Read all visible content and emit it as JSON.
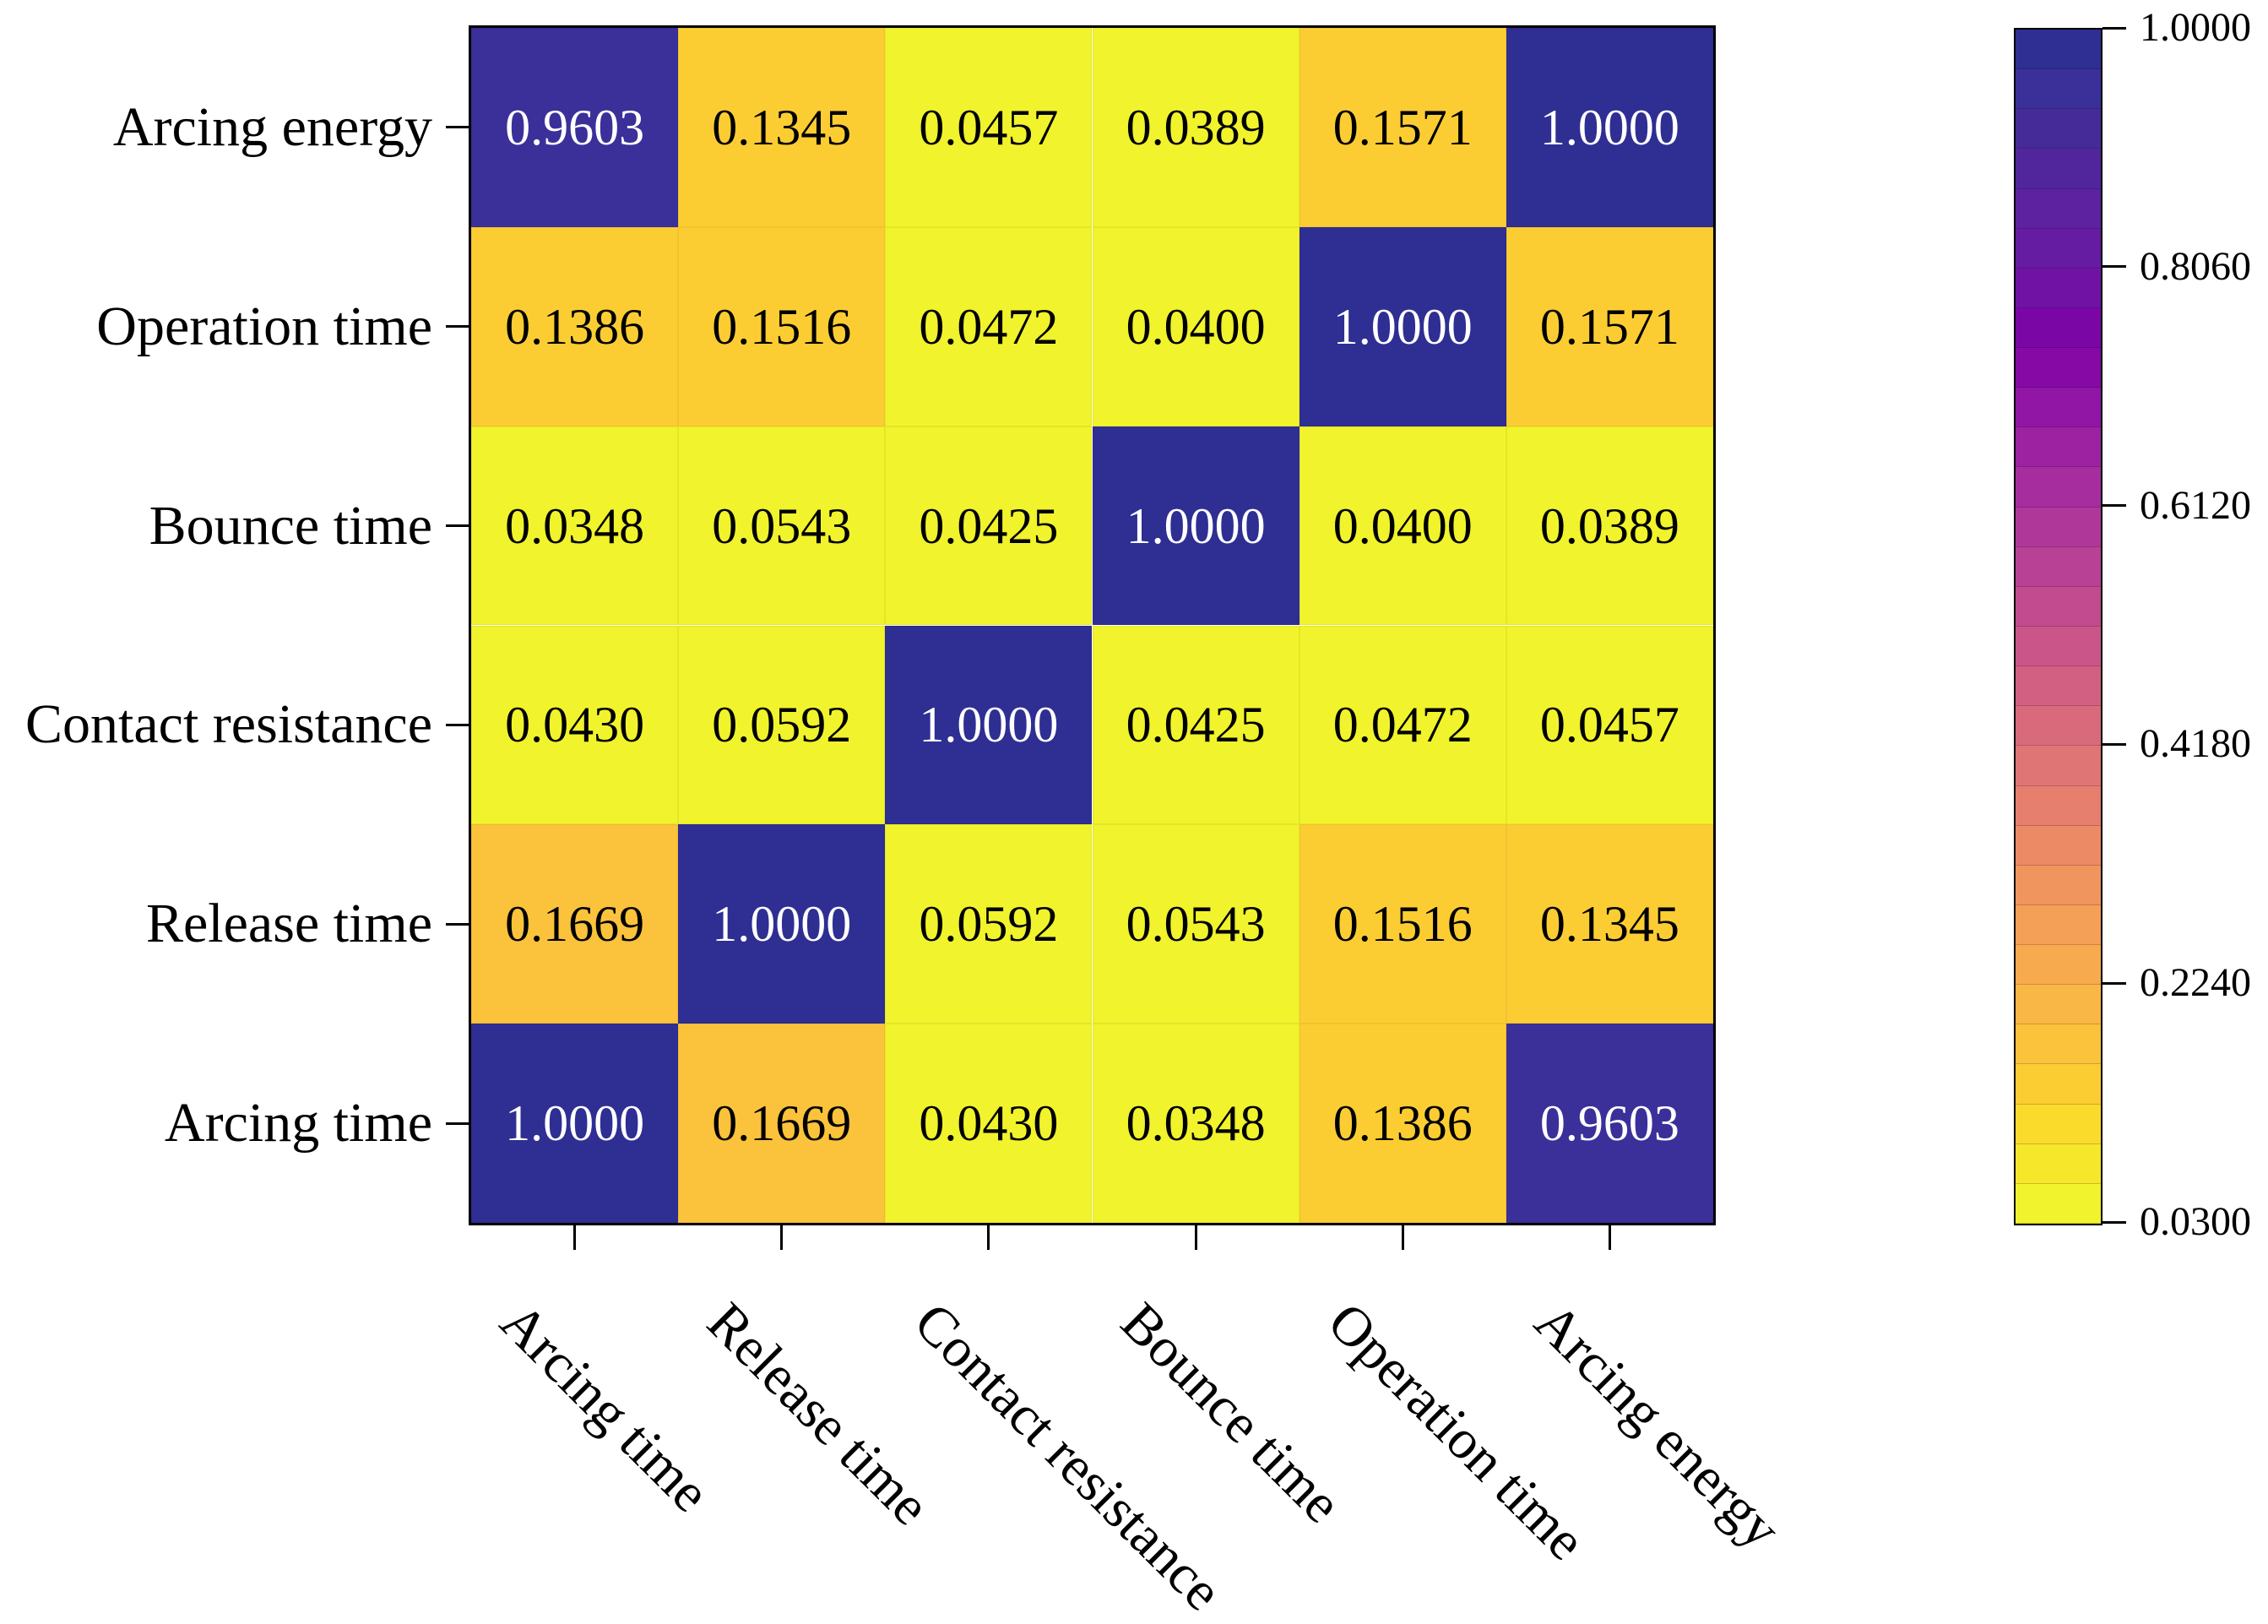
{
  "chart_data": {
    "type": "heatmap",
    "title": "",
    "rows_top_to_bottom": [
      "Arcing energy",
      "Operation time",
      "Bounce time",
      "Contact resistance",
      "Release time",
      "Arcing time"
    ],
    "columns_left_to_right": [
      "Arcing time",
      "Release time",
      "Contact resistance",
      "Bounce time",
      "Operation time",
      "Arcing energy"
    ],
    "values": [
      [
        0.9603,
        0.1345,
        0.0457,
        0.0389,
        0.1571,
        1.0
      ],
      [
        0.1386,
        0.1516,
        0.0472,
        0.04,
        1.0,
        0.1571
      ],
      [
        0.0348,
        0.0543,
        0.0425,
        1.0,
        0.04,
        0.0389
      ],
      [
        0.043,
        0.0592,
        1.0,
        0.0425,
        0.0472,
        0.0457
      ],
      [
        0.1669,
        1.0,
        0.0592,
        0.0543,
        0.1516,
        0.1345
      ],
      [
        1.0,
        0.1669,
        0.043,
        0.0348,
        0.1386,
        0.9603
      ]
    ],
    "value_decimals": 4,
    "grid": false,
    "colorbar": {
      "position": "right",
      "vmin": 0.03,
      "vmax": 1.0,
      "levels": 30,
      "tick_labels_top_to_bottom": [
        "1.0000",
        "0.8060",
        "0.6120",
        "0.4180",
        "0.2240",
        "0.0300"
      ],
      "tick_values_top_to_bottom": [
        1.0,
        0.806,
        0.612,
        0.418,
        0.224,
        0.03
      ],
      "level_colors_bottom_to_top": [
        "#f1f32c",
        "#f6e72a",
        "#fadb2b",
        "#fccd33",
        "#fbc23c",
        "#f9b745",
        "#f7ab4e",
        "#f4a056",
        "#f0955e",
        "#ec8a66",
        "#e67f6e",
        "#e07575",
        "#d96a7c",
        "#d26082",
        "#ca5689",
        "#c24b8f",
        "#b94195",
        "#b0379a",
        "#a62d9e",
        "#9c22a2",
        "#9116a5",
        "#8609a6",
        "#7b06a6",
        "#7013a5",
        "#661ba3",
        "#5c22a0",
        "#51269d",
        "#452b98",
        "#3b309a",
        "#2f2e93"
      ]
    },
    "cell_text_colors": {
      "light": "#ffffff",
      "dark": "#000000"
    },
    "light_text_threshold": 0.8,
    "axis_color": "#000000",
    "background_color": "#ffffff"
  }
}
